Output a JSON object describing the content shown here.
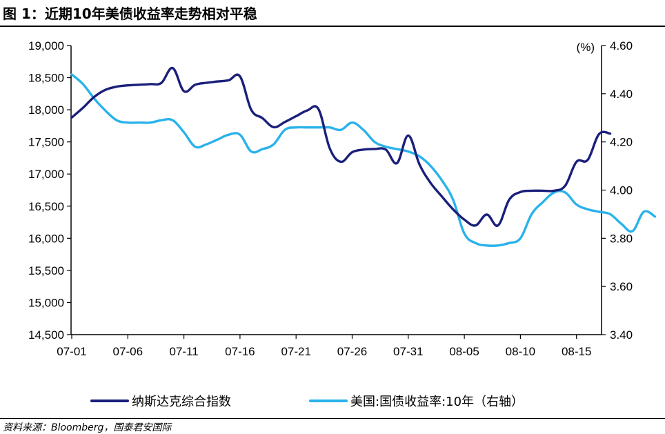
{
  "header": {
    "title": "图 1：近期10年美债收益率走势相对平稳"
  },
  "footer": {
    "source": "资料来源：Bloomberg，国泰君安国际"
  },
  "chart_data": {
    "type": "line",
    "x_tick_labels": [
      "07-01",
      "07-06",
      "07-11",
      "07-16",
      "07-21",
      "07-26",
      "07-31",
      "08-05",
      "08-10",
      "08-15"
    ],
    "left_axis": {
      "ylim": [
        14500,
        19000
      ],
      "ticks": [
        "14,500",
        "15,000",
        "15,500",
        "16,000",
        "16,500",
        "17,000",
        "17,500",
        "18,000",
        "18,500",
        "19,000"
      ]
    },
    "right_axis": {
      "unit_label": "(%)",
      "ylim": [
        3.4,
        4.6
      ],
      "ticks": [
        "3.40",
        "3.60",
        "3.80",
        "4.00",
        "4.20",
        "4.40",
        "4.60"
      ]
    },
    "grid": false,
    "legend_position": "bottom",
    "series": [
      {
        "name": "纳斯达克综合指数",
        "axis": "left",
        "color": "#1a1f7a",
        "points": [
          [
            0,
            17880
          ],
          [
            1,
            18030
          ],
          [
            2,
            18200
          ],
          [
            3,
            18310
          ],
          [
            4,
            18360
          ],
          [
            5,
            18380
          ],
          [
            6,
            18390
          ],
          [
            7,
            18400
          ],
          [
            8,
            18420
          ],
          [
            9,
            18650
          ],
          [
            10,
            18290
          ],
          [
            11,
            18390
          ],
          [
            12,
            18420
          ],
          [
            13,
            18440
          ],
          [
            14,
            18460
          ],
          [
            15,
            18520
          ],
          [
            16,
            18000
          ],
          [
            17,
            17870
          ],
          [
            18,
            17730
          ],
          [
            19,
            17810
          ],
          [
            20,
            17900
          ],
          [
            21,
            17990
          ],
          [
            22,
            18010
          ],
          [
            23,
            17400
          ],
          [
            24,
            17190
          ],
          [
            25,
            17340
          ],
          [
            26,
            17380
          ],
          [
            27,
            17390
          ],
          [
            28,
            17380
          ],
          [
            29,
            17170
          ],
          [
            30,
            17600
          ],
          [
            31,
            17150
          ],
          [
            32,
            16860
          ],
          [
            33,
            16650
          ],
          [
            34,
            16450
          ],
          [
            35,
            16290
          ],
          [
            36,
            16200
          ],
          [
            37,
            16370
          ],
          [
            38,
            16200
          ],
          [
            39,
            16600
          ],
          [
            40,
            16720
          ],
          [
            41,
            16740
          ],
          [
            42,
            16740
          ],
          [
            43,
            16740
          ],
          [
            44,
            16820
          ],
          [
            45,
            17190
          ],
          [
            46,
            17220
          ],
          [
            47,
            17620
          ],
          [
            48,
            17630
          ]
        ]
      },
      {
        "name": "美国:国债收益率:10年（右轴）",
        "axis": "right",
        "color": "#29b2ea",
        "points": [
          [
            0,
            4.48
          ],
          [
            1,
            4.44
          ],
          [
            2,
            4.38
          ],
          [
            3,
            4.33
          ],
          [
            4,
            4.29
          ],
          [
            5,
            4.28
          ],
          [
            6,
            4.28
          ],
          [
            7,
            4.28
          ],
          [
            8,
            4.29
          ],
          [
            9,
            4.29
          ],
          [
            10,
            4.24
          ],
          [
            11,
            4.18
          ],
          [
            12,
            4.19
          ],
          [
            13,
            4.21
          ],
          [
            14,
            4.23
          ],
          [
            15,
            4.23
          ],
          [
            16,
            4.16
          ],
          [
            17,
            4.17
          ],
          [
            18,
            4.19
          ],
          [
            19,
            4.25
          ],
          [
            20,
            4.26
          ],
          [
            21,
            4.26
          ],
          [
            22,
            4.26
          ],
          [
            23,
            4.26
          ],
          [
            24,
            4.25
          ],
          [
            25,
            4.28
          ],
          [
            26,
            4.25
          ],
          [
            27,
            4.2
          ],
          [
            28,
            4.18
          ],
          [
            29,
            4.17
          ],
          [
            30,
            4.16
          ],
          [
            31,
            4.14
          ],
          [
            32,
            4.1
          ],
          [
            33,
            4.04
          ],
          [
            34,
            3.96
          ],
          [
            35,
            3.82
          ],
          [
            36,
            3.78
          ],
          [
            37,
            3.77
          ],
          [
            38,
            3.77
          ],
          [
            39,
            3.78
          ],
          [
            40,
            3.8
          ],
          [
            41,
            3.9
          ],
          [
            42,
            3.95
          ],
          [
            43,
            3.99
          ],
          [
            44,
            3.99
          ],
          [
            45,
            3.94
          ],
          [
            46,
            3.92
          ],
          [
            47,
            3.91
          ],
          [
            48,
            3.9
          ],
          [
            49,
            3.86
          ],
          [
            50,
            3.83
          ],
          [
            51,
            3.91
          ],
          [
            52,
            3.89
          ]
        ]
      }
    ]
  }
}
